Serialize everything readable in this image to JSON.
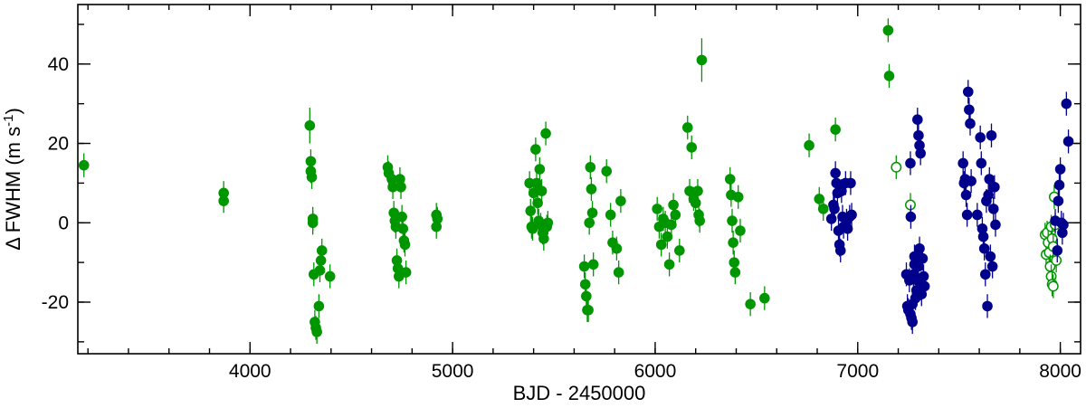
{
  "chart_data": {
    "type": "scatter",
    "xlabel": "BJD - 2450000",
    "ylabel": "Δ FWHM (m s",
    "ylabel_sup": "-1",
    "ylabel_end": ")",
    "xlim": [
      3150,
      8100
    ],
    "ylim": [
      -33,
      55
    ],
    "x_major_ticks": [
      4000,
      5000,
      6000,
      7000,
      8000
    ],
    "x_minor_step": 200,
    "y_major_ticks": [
      -20,
      0,
      20,
      40
    ],
    "y_minor_step": 10,
    "grid": false,
    "series": [
      {
        "color": "#009600",
        "marker": "filled-circle",
        "points": [
          [
            3180,
            14.5,
            3.0
          ],
          [
            3870,
            7.5,
            3.0
          ],
          [
            3870,
            5.5,
            3.0
          ],
          [
            4295,
            24.5,
            4.5
          ],
          [
            4300,
            15.5,
            3.0
          ],
          [
            4300,
            13.0,
            3.0
          ],
          [
            4305,
            11.5,
            3.0
          ],
          [
            4310,
            1.0,
            3.0
          ],
          [
            4310,
            0.0,
            3.0
          ],
          [
            4315,
            -13.0,
            3.0
          ],
          [
            4320,
            -25.0,
            3.0
          ],
          [
            4325,
            -26.5,
            3.0
          ],
          [
            4330,
            -27.5,
            3.0
          ],
          [
            4340,
            -21.0,
            3.0
          ],
          [
            4345,
            -12.0,
            3.0
          ],
          [
            4350,
            -9.5,
            3.0
          ],
          [
            4355,
            -7.0,
            3.0
          ],
          [
            4395,
            -13.5,
            3.0
          ],
          [
            4680,
            14.0,
            3.0
          ],
          [
            4685,
            12.5,
            3.0
          ],
          [
            4700,
            11.0,
            3.0
          ],
          [
            4705,
            9.0,
            3.0
          ],
          [
            4710,
            2.5,
            3.0
          ],
          [
            4715,
            0.5,
            3.0
          ],
          [
            4720,
            -1.0,
            3.0
          ],
          [
            4725,
            -9.5,
            3.0
          ],
          [
            4730,
            -11.5,
            3.0
          ],
          [
            4735,
            -13.5,
            3.0
          ],
          [
            4740,
            11.0,
            3.0
          ],
          [
            4745,
            9.0,
            3.0
          ],
          [
            4750,
            1.5,
            3.0
          ],
          [
            4755,
            -1.5,
            3.0
          ],
          [
            4760,
            -4.5,
            3.0
          ],
          [
            4765,
            -5.5,
            3.0
          ],
          [
            4770,
            -12.5,
            3.0
          ],
          [
            4920,
            2.0,
            3.0
          ],
          [
            4925,
            1.0,
            3.0
          ],
          [
            4920,
            -1.0,
            3.0
          ],
          [
            5380,
            10.0,
            3.0
          ],
          [
            5385,
            3.0,
            3.0
          ],
          [
            5390,
            -1.0,
            3.0
          ],
          [
            5395,
            -1.5,
            3.0
          ],
          [
            5400,
            7.5,
            3.0
          ],
          [
            5410,
            18.5,
            3.0
          ],
          [
            5415,
            10.0,
            3.0
          ],
          [
            5420,
            5.0,
            3.0
          ],
          [
            5425,
            0.5,
            3.0
          ],
          [
            5430,
            13.5,
            3.0
          ],
          [
            5435,
            -0.5,
            3.0
          ],
          [
            5440,
            8.0,
            3.0
          ],
          [
            5445,
            -2.5,
            3.0
          ],
          [
            5450,
            -4.0,
            3.0
          ],
          [
            5460,
            22.5,
            3.0
          ],
          [
            5465,
            -1.0,
            3.0
          ],
          [
            5470,
            0.0,
            3.0
          ],
          [
            5650,
            -11.0,
            3.0
          ],
          [
            5655,
            -15.5,
            3.0
          ],
          [
            5660,
            -18.5,
            3.0
          ],
          [
            5665,
            -22.0,
            3.0
          ],
          [
            5670,
            -22.0,
            3.0
          ],
          [
            5675,
            0.0,
            3.0
          ],
          [
            5680,
            14.0,
            3.0
          ],
          [
            5685,
            8.5,
            3.0
          ],
          [
            5690,
            2.5,
            3.0
          ],
          [
            5695,
            -10.5,
            3.0
          ],
          [
            5760,
            13.0,
            3.0
          ],
          [
            5780,
            2.0,
            3.0
          ],
          [
            5790,
            -5.0,
            3.0
          ],
          [
            5810,
            -6.5,
            3.0
          ],
          [
            5820,
            -12.5,
            3.0
          ],
          [
            5830,
            5.5,
            3.0
          ],
          [
            6010,
            3.5,
            3.0
          ],
          [
            6020,
            -1.0,
            3.0
          ],
          [
            6030,
            -5.5,
            3.0
          ],
          [
            6040,
            1.0,
            3.0
          ],
          [
            6050,
            0.0,
            3.0
          ],
          [
            6060,
            -3.5,
            3.0
          ],
          [
            6070,
            -10.5,
            3.0
          ],
          [
            6080,
            -0.5,
            3.0
          ],
          [
            6090,
            4.5,
            3.0
          ],
          [
            6100,
            2.0,
            3.0
          ],
          [
            6120,
            -7.0,
            3.0
          ],
          [
            6160,
            24.0,
            3.0
          ],
          [
            6170,
            8.0,
            3.0
          ],
          [
            6180,
            19.0,
            3.0
          ],
          [
            6190,
            6.0,
            3.0
          ],
          [
            6200,
            5.0,
            3.0
          ],
          [
            6210,
            8.0,
            3.0
          ],
          [
            6215,
            2.0,
            3.0
          ],
          [
            6220,
            0.5,
            3.0
          ],
          [
            6230,
            41.0,
            5.5
          ],
          [
            6370,
            11.0,
            3.0
          ],
          [
            6375,
            7.0,
            3.0
          ],
          [
            6380,
            0.5,
            3.0
          ],
          [
            6385,
            -5.0,
            3.0
          ],
          [
            6390,
            -10.0,
            3.0
          ],
          [
            6395,
            -12.5,
            3.0
          ],
          [
            6410,
            6.5,
            3.0
          ],
          [
            6420,
            -2.0,
            3.0
          ],
          [
            6470,
            -20.5,
            3.0
          ],
          [
            6540,
            -19.0,
            3.0
          ],
          [
            6760,
            19.5,
            3.0
          ],
          [
            6810,
            6.0,
            3.0
          ],
          [
            6830,
            3.5,
            3.0
          ],
          [
            6890,
            23.5,
            3.0
          ],
          [
            7150,
            48.5,
            3.0
          ],
          [
            7155,
            37.0,
            3.0
          ]
        ]
      },
      {
        "color": "#009600",
        "marker": "open-circle",
        "points": [
          [
            7190,
            14.0,
            3.0
          ],
          [
            7260,
            4.5,
            3.0
          ],
          [
            7925,
            -3.0,
            3.0
          ],
          [
            7930,
            -8.0,
            3.0
          ],
          [
            7935,
            -2.5,
            3.0
          ],
          [
            7940,
            -5.0,
            3.0
          ],
          [
            7945,
            -7.5,
            3.0
          ],
          [
            7950,
            -11.0,
            3.0
          ],
          [
            7955,
            -13.5,
            3.0
          ],
          [
            7960,
            -15.5,
            3.0
          ],
          [
            7965,
            -16.0,
            3.0
          ],
          [
            7955,
            -1.0,
            3.0
          ],
          [
            7960,
            -4.0,
            3.0
          ],
          [
            7965,
            -6.0,
            3.0
          ],
          [
            7970,
            6.5,
            3.0
          ],
          [
            7975,
            -0.5,
            3.0
          ],
          [
            7980,
            -9.5,
            3.0
          ]
        ]
      },
      {
        "color": "#00008C",
        "marker": "filled-circle",
        "points": [
          [
            6870,
            1.0,
            3.0
          ],
          [
            6880,
            4.5,
            3.0
          ],
          [
            6885,
            3.5,
            3.0
          ],
          [
            6890,
            12.5,
            3.0
          ],
          [
            6895,
            10.0,
            3.0
          ],
          [
            6900,
            7.5,
            3.0
          ],
          [
            6905,
            -2.0,
            3.0
          ],
          [
            6910,
            -5.5,
            3.0
          ],
          [
            6915,
            -7.0,
            3.0
          ],
          [
            6920,
            8.0,
            3.0
          ],
          [
            6925,
            1.5,
            3.0
          ],
          [
            6930,
            -1.0,
            3.0
          ],
          [
            6940,
            10.0,
            3.0
          ],
          [
            6945,
            0.5,
            3.0
          ],
          [
            6950,
            -1.5,
            3.0
          ],
          [
            6960,
            1.5,
            3.0
          ],
          [
            6965,
            10.0,
            3.0
          ],
          [
            6970,
            2.0,
            3.0
          ],
          [
            7240,
            -13.0,
            3.0
          ],
          [
            7245,
            -21.0,
            3.0
          ],
          [
            7250,
            -22.0,
            3.0
          ],
          [
            7255,
            -14.5,
            3.0
          ],
          [
            7260,
            -23.0,
            3.0
          ],
          [
            7262,
            1.5,
            3.0
          ],
          [
            7265,
            -24.0,
            3.0
          ],
          [
            7270,
            -25.0,
            3.0
          ],
          [
            7275,
            -13.0,
            3.0
          ],
          [
            7280,
            -10.5,
            3.0
          ],
          [
            7285,
            -19.0,
            3.0
          ],
          [
            7290,
            -17.0,
            3.0
          ],
          [
            7295,
            -14.5,
            3.0
          ],
          [
            7300,
            -11.0,
            3.0
          ],
          [
            7305,
            -6.5,
            3.0
          ],
          [
            7310,
            -16.5,
            3.0
          ],
          [
            7315,
            -18.0,
            3.0
          ],
          [
            7320,
            -9.0,
            3.0
          ],
          [
            7325,
            -13.5,
            3.0
          ],
          [
            7330,
            -16.0,
            3.0
          ],
          [
            7260,
            15.0,
            3.0
          ],
          [
            7270,
            -20.5,
            3.0
          ],
          [
            7280,
            -8.5,
            3.0
          ],
          [
            7295,
            26.0,
            3.0
          ],
          [
            7300,
            22.0,
            3.0
          ],
          [
            7305,
            19.5,
            3.0
          ],
          [
            7310,
            17.5,
            3.0
          ],
          [
            7520,
            15.0,
            3.0
          ],
          [
            7525,
            10.0,
            3.0
          ],
          [
            7530,
            11.0,
            3.0
          ],
          [
            7535,
            7.0,
            3.0
          ],
          [
            7540,
            2.0,
            3.0
          ],
          [
            7545,
            33.0,
            3.0
          ],
          [
            7550,
            28.5,
            3.0
          ],
          [
            7555,
            25.0,
            3.0
          ],
          [
            7560,
            10.5,
            3.0
          ],
          [
            7590,
            2.0,
            3.0
          ],
          [
            7605,
            21.5,
            3.0
          ],
          [
            7610,
            15.0,
            3.0
          ],
          [
            7615,
            -1.5,
            3.0
          ],
          [
            7620,
            -3.5,
            3.0
          ],
          [
            7625,
            -6.5,
            3.0
          ],
          [
            7630,
            -13.0,
            3.0
          ],
          [
            7635,
            5.5,
            3.0
          ],
          [
            7640,
            -21.0,
            3.0
          ],
          [
            7645,
            7.0,
            3.0
          ],
          [
            7650,
            11.0,
            3.0
          ],
          [
            7655,
            -8.5,
            3.0
          ],
          [
            7660,
            22.0,
            3.0
          ],
          [
            7665,
            -11.0,
            3.0
          ],
          [
            7670,
            3.5,
            3.0
          ],
          [
            7675,
            9.0,
            3.0
          ],
          [
            7680,
            -0.5,
            3.0
          ],
          [
            7975,
            0.5,
            3.0
          ],
          [
            7985,
            -7.0,
            3.0
          ],
          [
            7990,
            5.5,
            3.0
          ],
          [
            7995,
            9.5,
            3.0
          ],
          [
            8000,
            13.5,
            3.0
          ],
          [
            8005,
            0.0,
            3.0
          ],
          [
            8010,
            -2.5,
            3.0
          ],
          [
            8015,
            -0.5,
            3.0
          ],
          [
            8030,
            30.0,
            3.0
          ],
          [
            8040,
            20.5,
            3.0
          ]
        ]
      }
    ]
  }
}
